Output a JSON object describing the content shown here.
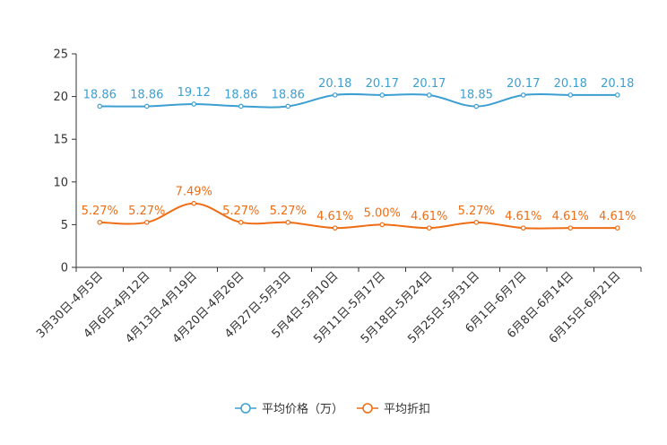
{
  "chart_data": {
    "type": "line",
    "title": "",
    "xlabel": "",
    "ylabel": "",
    "ylim": [
      0,
      25
    ],
    "yticks": [
      0,
      5,
      10,
      15,
      20,
      25
    ],
    "categories": [
      "3月30日-4月5日",
      "4月6日-4月12日",
      "4月13日-4月19日",
      "4月20日-4月26日",
      "4月27日-5月3日",
      "5月4日-5月10日",
      "5月11日-5月17日",
      "5月18日-5月24日",
      "5月25日-5月31日",
      "6月1日-6月7日",
      "6月8日-6月14日",
      "6月15日-6月21日"
    ],
    "series": [
      {
        "name": "平均价格（万）",
        "color": "#3c9fd1",
        "values": [
          18.86,
          18.86,
          19.12,
          18.86,
          18.86,
          20.18,
          20.17,
          20.17,
          18.85,
          20.17,
          20.18,
          20.18
        ],
        "labels": [
          "18.86",
          "18.86",
          "19.12",
          "18.86",
          "18.86",
          "20.18",
          "20.17",
          "20.17",
          "18.85",
          "20.17",
          "20.18",
          "20.18"
        ]
      },
      {
        "name": "平均折扣",
        "color": "#ee6d14",
        "values": [
          5.27,
          5.27,
          7.49,
          5.27,
          5.27,
          4.61,
          5.0,
          4.61,
          5.27,
          4.61,
          4.61,
          4.61
        ],
        "labels": [
          "5.27%",
          "5.27%",
          "7.49%",
          "5.27%",
          "5.27%",
          "4.61%",
          "5.00%",
          "4.61%",
          "5.27%",
          "4.61%",
          "4.61%",
          "4.61%"
        ]
      }
    ],
    "legend_position": "bottom-center"
  }
}
